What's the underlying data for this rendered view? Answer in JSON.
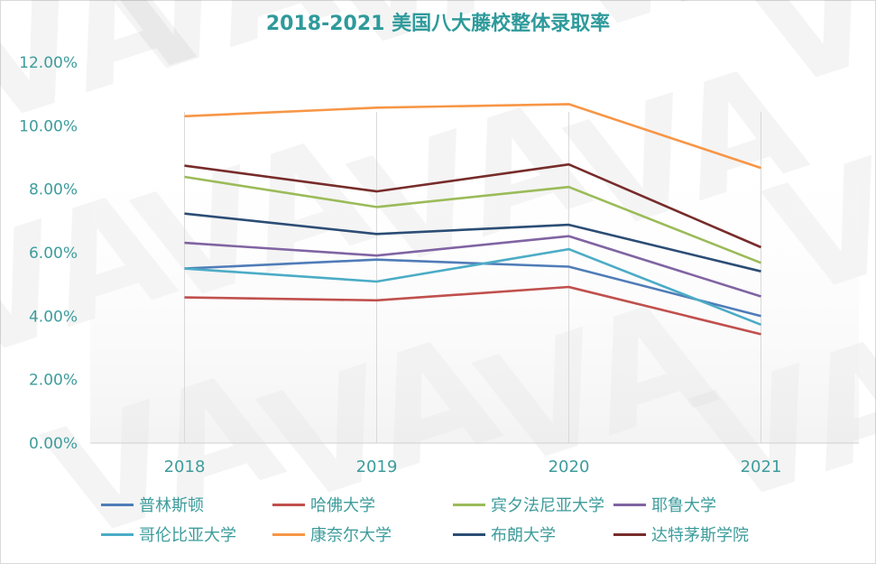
{
  "chart_data": {
    "type": "line",
    "title": "2018-2021 美国八大藤校整体录取率",
    "xlabel": "",
    "ylabel": "",
    "x": [
      "2018",
      "2019",
      "2020",
      "2021"
    ],
    "ylim": [
      0,
      12
    ],
    "yticks": [
      "0.00%",
      "2.00%",
      "4.00%",
      "6.00%",
      "8.00%",
      "10.00%",
      "12.00%"
    ],
    "ytick_values": [
      0,
      2,
      4,
      6,
      8,
      10,
      12
    ],
    "grid": "vertical",
    "legend_position": "bottom",
    "series": [
      {
        "name": "普林斯顿",
        "color": "#4f7cb8",
        "values": [
          5.5,
          5.78,
          5.56,
          4.0
        ]
      },
      {
        "name": "哈佛大学",
        "color": "#c0504d",
        "values": [
          4.59,
          4.5,
          4.92,
          3.43
        ]
      },
      {
        "name": "宾夕法尼亚大学",
        "color": "#9bbb59",
        "values": [
          8.39,
          7.44,
          8.07,
          5.68
        ]
      },
      {
        "name": "耶鲁大学",
        "color": "#8064a2",
        "values": [
          6.31,
          5.91,
          6.52,
          4.62
        ]
      },
      {
        "name": "哥伦比亚大学",
        "color": "#4bacc6",
        "values": [
          5.5,
          5.09,
          6.11,
          3.73
        ]
      },
      {
        "name": "康奈尔大学",
        "color": "#f79646",
        "values": [
          10.3,
          10.57,
          10.68,
          8.67
        ]
      },
      {
        "name": "布朗大学",
        "color": "#2c4d75",
        "values": [
          7.23,
          6.59,
          6.88,
          5.41
        ]
      },
      {
        "name": "达特茅斯学院",
        "color": "#772c2a",
        "values": [
          8.74,
          7.93,
          8.78,
          6.17
        ]
      }
    ]
  },
  "watermark": "VA"
}
